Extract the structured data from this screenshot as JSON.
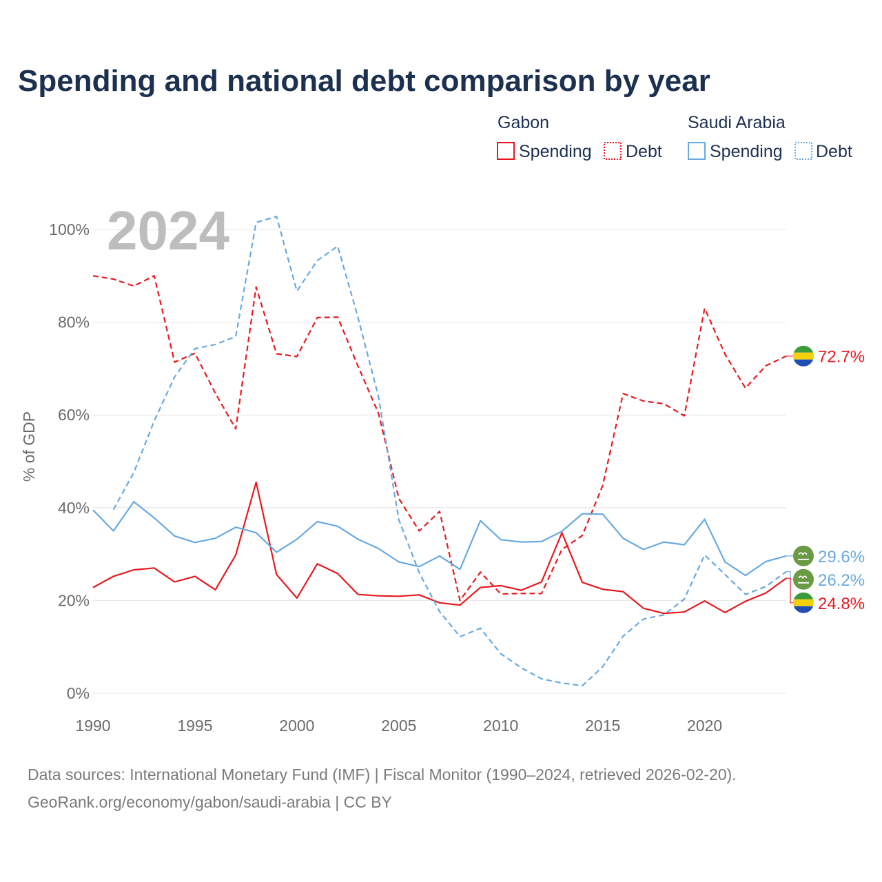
{
  "title": "Spending and national debt comparison by year",
  "year_label": "2024",
  "legend": {
    "groups": [
      {
        "country": "Gabon",
        "color": "#e8191e",
        "items": [
          {
            "label": "Spending",
            "style": "solid"
          },
          {
            "label": "Debt",
            "style": "dotted"
          }
        ]
      },
      {
        "country": "Saudi Arabia",
        "color": "#68a9e0",
        "items": [
          {
            "label": "Spending",
            "style": "solid"
          },
          {
            "label": "Debt",
            "style": "dotted"
          }
        ]
      }
    ]
  },
  "y_axis_label": "% of GDP",
  "source_lines": [
    "Data sources: International Monetary Fund (IMF) | Fiscal Monitor (1990–2024, retrieved 2026-02-20).",
    "GeoRank.org/economy/gabon/saudi-arabia | CC BY"
  ],
  "chart_data": {
    "type": "line",
    "title": "Spending and national debt comparison by year",
    "xlabel": "",
    "ylabel": "% of GDP",
    "xlim": [
      1990,
      2024
    ],
    "ylim": [
      0,
      100
    ],
    "x_ticks": [
      1990,
      1995,
      2000,
      2005,
      2010,
      2015,
      2020
    ],
    "y_ticks": [
      0,
      20,
      40,
      60,
      80,
      100
    ],
    "y_tick_labels": [
      "0%",
      "20%",
      "40%",
      "60%",
      "80%",
      "100%"
    ],
    "grid": true,
    "legend_position": "top-right",
    "series": [
      {
        "name": "Gabon Debt",
        "country": "Gabon",
        "metric": "Debt",
        "color": "#e8191e",
        "dash": "dashed",
        "flag": "gabon",
        "end_label": "72.7%",
        "points": [
          [
            1990,
            90.0
          ],
          [
            1991,
            89.3
          ],
          [
            1992,
            87.8
          ],
          [
            1993,
            90.0
          ],
          [
            1994,
            71.4
          ],
          [
            1995,
            73.3
          ],
          [
            1996,
            64.7
          ],
          [
            1997,
            57.0
          ],
          [
            1998,
            87.6
          ],
          [
            1999,
            73.2
          ],
          [
            2000,
            72.6
          ],
          [
            2001,
            81.0
          ],
          [
            2002,
            81.1
          ],
          [
            2003,
            70.5
          ],
          [
            2004,
            60.4
          ],
          [
            2005,
            42.0
          ],
          [
            2006,
            35.0
          ],
          [
            2007,
            39.2
          ],
          [
            2008,
            20.0
          ],
          [
            2009,
            26.1
          ],
          [
            2010,
            21.4
          ],
          [
            2011,
            21.5
          ],
          [
            2012,
            21.5
          ],
          [
            2013,
            31.0
          ],
          [
            2014,
            34.0
          ],
          [
            2015,
            44.8
          ],
          [
            2016,
            64.6
          ],
          [
            2017,
            63.0
          ],
          [
            2018,
            62.4
          ],
          [
            2019,
            59.8
          ],
          [
            2020,
            83.0
          ],
          [
            2021,
            73.1
          ],
          [
            2022,
            65.8
          ],
          [
            2023,
            70.6
          ],
          [
            2024,
            72.7
          ]
        ]
      },
      {
        "name": "Gabon Spending",
        "country": "Gabon",
        "metric": "Spending",
        "color": "#e8191e",
        "dash": "solid",
        "flag": "gabon",
        "end_label": "24.8%",
        "points": [
          [
            1990,
            22.8
          ],
          [
            1991,
            25.2
          ],
          [
            1992,
            26.6
          ],
          [
            1993,
            27.0
          ],
          [
            1994,
            24.0
          ],
          [
            1995,
            25.2
          ],
          [
            1996,
            22.3
          ],
          [
            1997,
            29.8
          ],
          [
            1998,
            45.5
          ],
          [
            1999,
            25.6
          ],
          [
            2000,
            20.5
          ],
          [
            2001,
            27.9
          ],
          [
            2002,
            25.8
          ],
          [
            2003,
            21.3
          ],
          [
            2004,
            21.0
          ],
          [
            2005,
            20.9
          ],
          [
            2006,
            21.2
          ],
          [
            2007,
            19.5
          ],
          [
            2008,
            19.0
          ],
          [
            2009,
            22.8
          ],
          [
            2010,
            23.2
          ],
          [
            2011,
            22.2
          ],
          [
            2012,
            24.0
          ],
          [
            2013,
            34.6
          ],
          [
            2014,
            23.9
          ],
          [
            2015,
            22.4
          ],
          [
            2016,
            21.9
          ],
          [
            2017,
            18.3
          ],
          [
            2018,
            17.2
          ],
          [
            2019,
            17.5
          ],
          [
            2020,
            19.9
          ],
          [
            2021,
            17.4
          ],
          [
            2022,
            19.8
          ],
          [
            2023,
            21.6
          ],
          [
            2024,
            24.8
          ]
        ]
      },
      {
        "name": "Saudi Arabia Debt",
        "country": "Saudi Arabia",
        "metric": "Debt",
        "color": "#68a9e0",
        "dash": "dashed",
        "flag": "saudi",
        "end_label": "26.2%",
        "points": [
          [
            1991,
            39.6
          ],
          [
            1992,
            47.6
          ],
          [
            1993,
            58.7
          ],
          [
            1994,
            68.2
          ],
          [
            1995,
            74.3
          ],
          [
            1996,
            75.2
          ],
          [
            1997,
            76.9
          ],
          [
            1998,
            101.5
          ],
          [
            1999,
            102.8
          ],
          [
            2000,
            86.7
          ],
          [
            2001,
            93.3
          ],
          [
            2002,
            96.4
          ],
          [
            2003,
            81.0
          ],
          [
            2004,
            64.0
          ],
          [
            2005,
            37.4
          ],
          [
            2006,
            26.0
          ],
          [
            2007,
            17.6
          ],
          [
            2008,
            12.2
          ],
          [
            2009,
            14.0
          ],
          [
            2010,
            8.5
          ],
          [
            2011,
            5.5
          ],
          [
            2012,
            3.1
          ],
          [
            2013,
            2.2
          ],
          [
            2014,
            1.6
          ],
          [
            2015,
            5.7
          ],
          [
            2016,
            12.3
          ],
          [
            2017,
            16.0
          ],
          [
            2018,
            16.9
          ],
          [
            2019,
            20.3
          ],
          [
            2020,
            29.8
          ],
          [
            2021,
            25.6
          ],
          [
            2022,
            21.3
          ],
          [
            2023,
            23.0
          ],
          [
            2024,
            26.2
          ]
        ]
      },
      {
        "name": "Saudi Arabia Spending",
        "country": "Saudi Arabia",
        "metric": "Spending",
        "color": "#68a9e0",
        "dash": "solid",
        "flag": "saudi",
        "end_label": "29.6%",
        "points": [
          [
            1990,
            39.5
          ],
          [
            1991,
            35.0
          ],
          [
            1992,
            41.3
          ],
          [
            1993,
            37.8
          ],
          [
            1994,
            33.9
          ],
          [
            1995,
            32.5
          ],
          [
            1996,
            33.4
          ],
          [
            1997,
            35.8
          ],
          [
            1998,
            34.6
          ],
          [
            1999,
            30.4
          ],
          [
            2000,
            33.2
          ],
          [
            2001,
            37.0
          ],
          [
            2002,
            36.0
          ],
          [
            2003,
            33.2
          ],
          [
            2004,
            31.2
          ],
          [
            2005,
            28.3
          ],
          [
            2006,
            27.3
          ],
          [
            2007,
            29.6
          ],
          [
            2008,
            26.7
          ],
          [
            2009,
            37.2
          ],
          [
            2010,
            33.1
          ],
          [
            2011,
            32.6
          ],
          [
            2012,
            32.7
          ],
          [
            2013,
            34.9
          ],
          [
            2014,
            38.7
          ],
          [
            2015,
            38.6
          ],
          [
            2016,
            33.4
          ],
          [
            2017,
            31.0
          ],
          [
            2018,
            32.6
          ],
          [
            2019,
            32.0
          ],
          [
            2020,
            37.5
          ],
          [
            2021,
            28.3
          ],
          [
            2022,
            25.4
          ],
          [
            2023,
            28.4
          ],
          [
            2024,
            29.6
          ]
        ]
      }
    ]
  }
}
